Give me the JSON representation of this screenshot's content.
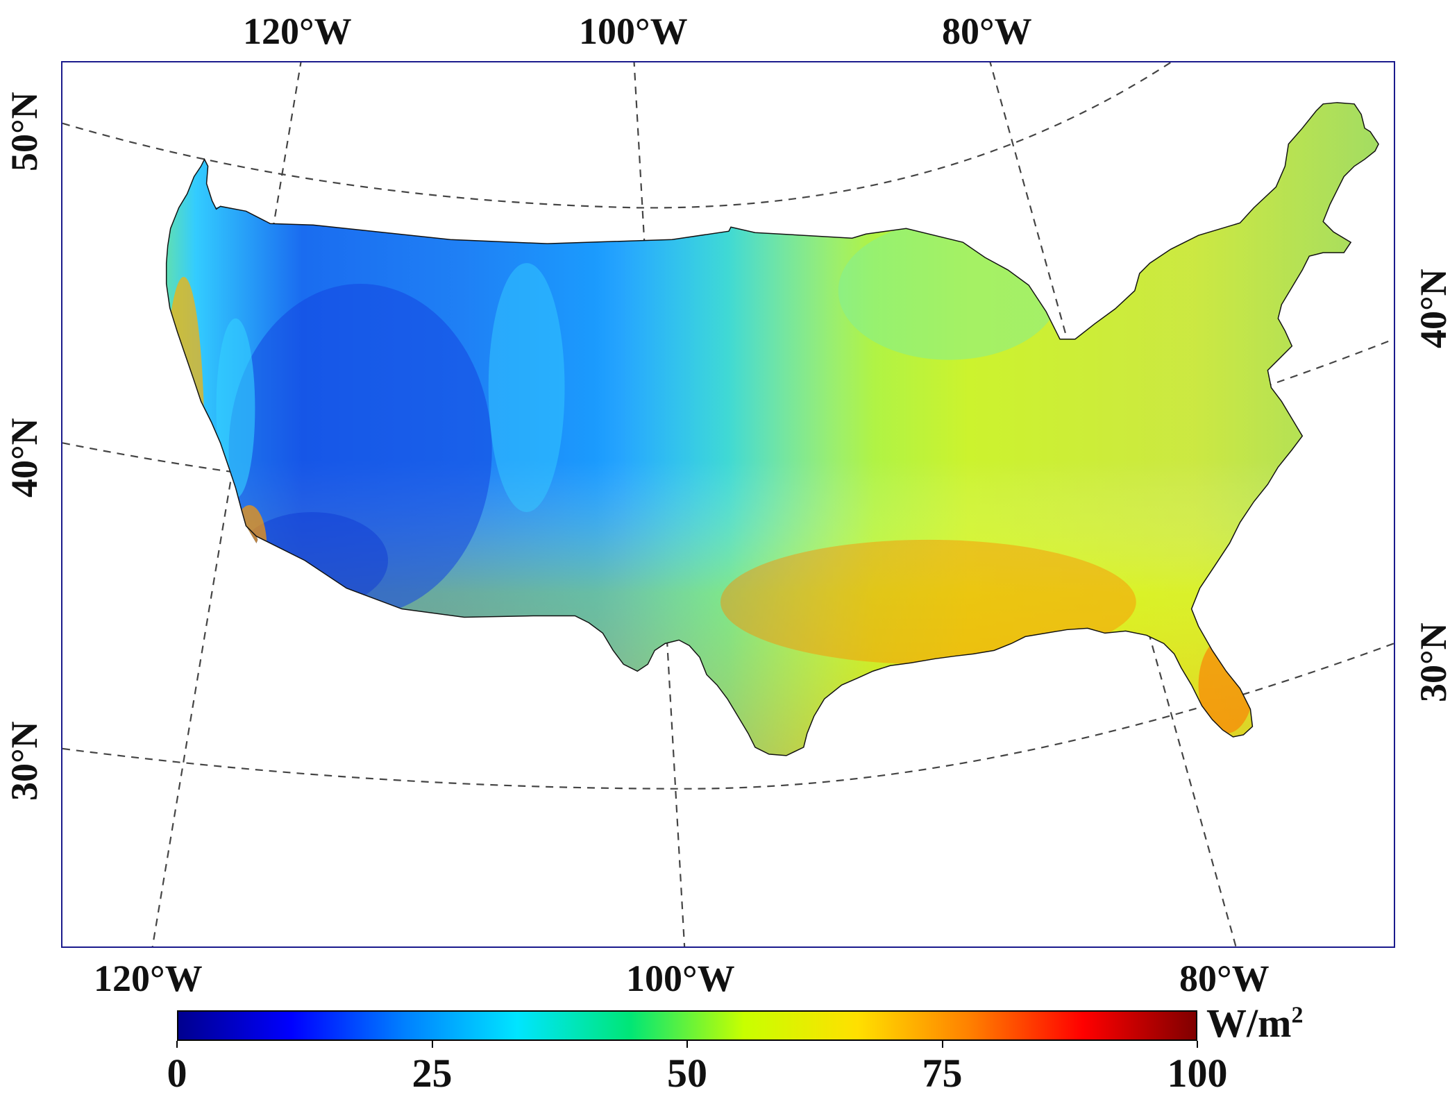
{
  "map": {
    "top_lon_labels": [
      "120°W",
      "100°W",
      "80°W"
    ],
    "bottom_lon_labels": [
      "120°W",
      "100°W",
      "80°W"
    ],
    "left_lat_labels": [
      "50°N",
      "40°N",
      "30°N"
    ],
    "right_lat_labels": [
      "40°N",
      "30°N"
    ]
  },
  "colorbar": {
    "ticks": [
      "0",
      "25",
      "50",
      "75",
      "100"
    ],
    "unit_base": "W/m",
    "unit_sup": "2",
    "range": [
      0,
      100
    ],
    "colors": [
      "#00008f",
      "#0000ff",
      "#0080ff",
      "#00e5ff",
      "#00e676",
      "#c8ff00",
      "#ffe000",
      "#ff8000",
      "#ff0000",
      "#800000"
    ]
  },
  "colors": {
    "frame": "#1a1a8c",
    "graticule": "#444444"
  }
}
